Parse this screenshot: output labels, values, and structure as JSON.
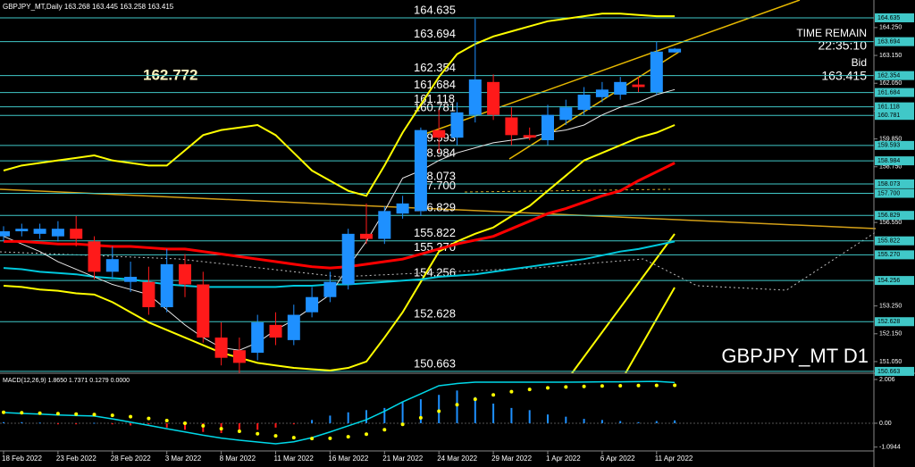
{
  "chart_data": [
    {
      "type": "candlestick",
      "title": "GBPJPY_MT,Daily  163.268 163.445 163.258 163.415",
      "annotations": {
        "high_label": "162.772",
        "time_remain": "TIME REMAIN",
        "timer": "22:35:10",
        "bid_label": "Bid",
        "bid": "163.415",
        "symbol": "GBPJPY_MT D1"
      },
      "up_color": "#1e90ff",
      "down_color": "#ff1a1a",
      "level_color": "#40c8c8",
      "categories": [
        "18 Feb 2022",
        null,
        null,
        "23 Feb 2022",
        null,
        null,
        "28 Feb 2022",
        null,
        null,
        "3 Mar 2022",
        null,
        null,
        "8 Mar 2022",
        null,
        null,
        "11 Mar 2022",
        null,
        null,
        "16 Mar 2022",
        null,
        null,
        "21 Mar 2022",
        null,
        null,
        "24 Mar 2022",
        null,
        null,
        "29 Mar 2022",
        null,
        null,
        "1 Apr 2022",
        null,
        null,
        "6 Apr 2022",
        null,
        null,
        "11 Apr 2022",
        null
      ],
      "open": [
        156.0,
        156.2,
        156.1,
        156.0,
        156.3,
        155.8,
        154.6,
        154.2,
        154.2,
        153.2,
        154.9,
        154.1,
        152.0,
        151.5,
        151.4,
        152.5,
        151.9,
        153.0,
        153.6,
        154.1,
        156.1,
        155.9,
        156.9,
        157.0,
        160.2,
        159.9,
        160.8,
        162.1,
        160.7,
        160.0,
        159.8,
        160.6,
        161.0,
        161.5,
        161.6,
        162.0,
        161.7,
        163.268
      ],
      "high": [
        156.4,
        156.5,
        156.5,
        156.6,
        156.8,
        156.0,
        155.6,
        155.0,
        154.8,
        155.5,
        155.3,
        154.6,
        152.6,
        152.0,
        152.9,
        153.0,
        153.3,
        154.0,
        154.6,
        156.3,
        157.3,
        157.2,
        157.6,
        160.3,
        161.0,
        161.3,
        164.6,
        162.4,
        161.1,
        160.3,
        161.2,
        161.4,
        161.9,
        162.1,
        162.3,
        162.3,
        163.7,
        163.445
      ],
      "low": [
        155.8,
        156.0,
        155.9,
        155.8,
        155.6,
        154.3,
        154.3,
        153.8,
        152.9,
        153.0,
        153.6,
        151.8,
        150.9,
        150.6,
        151.1,
        151.7,
        151.7,
        152.8,
        153.4,
        153.9,
        155.7,
        155.7,
        156.7,
        156.8,
        159.3,
        159.6,
        160.5,
        160.6,
        159.6,
        159.8,
        159.6,
        160.4,
        160.8,
        161.3,
        161.4,
        161.7,
        161.6,
        163.258
      ],
      "close": [
        156.2,
        156.3,
        156.3,
        156.3,
        155.9,
        154.6,
        155.1,
        154.4,
        153.2,
        154.9,
        154.1,
        152.0,
        151.2,
        151.0,
        152.6,
        152.0,
        152.9,
        153.6,
        154.2,
        156.1,
        155.9,
        157.0,
        157.3,
        160.2,
        159.9,
        160.9,
        162.2,
        160.8,
        160.0,
        159.9,
        160.8,
        161.1,
        161.6,
        161.8,
        162.1,
        161.9,
        163.3,
        163.415
      ],
      "lines": [
        {
          "color": "#ffff00",
          "values": [
            158.6,
            158.8,
            158.9,
            159.0,
            159.1,
            159.2,
            159.0,
            158.9,
            158.8,
            158.8,
            159.4,
            160.0,
            160.2,
            160.3,
            160.4,
            160.0,
            159.3,
            158.6,
            158.2,
            157.8,
            157.6,
            158.8,
            160.1,
            161.2,
            162.3,
            163.2,
            163.6,
            163.9,
            164.1,
            164.3,
            164.5,
            164.6,
            164.7,
            164.8,
            164.8,
            164.75,
            164.7,
            164.7
          ]
        },
        {
          "color": "#ffff00",
          "values": [
            154.05,
            154.0,
            153.9,
            153.85,
            153.75,
            153.7,
            153.4,
            153.0,
            152.6,
            152.3,
            152.0,
            151.7,
            151.4,
            151.2,
            151.0,
            150.9,
            150.8,
            150.75,
            150.7,
            150.8,
            151.05,
            152.0,
            153.0,
            154.2,
            155.4,
            155.8,
            156.1,
            156.35,
            156.8,
            157.2,
            157.8,
            158.4,
            159.0,
            159.3,
            159.6,
            159.9,
            160.1,
            160.4
          ]
        },
        {
          "color": "#00c8dc",
          "values": [
            154.75,
            154.7,
            154.6,
            154.55,
            154.5,
            154.4,
            154.35,
            154.3,
            154.2,
            154.1,
            154.05,
            154.0,
            154.0,
            154.0,
            154.0,
            154.0,
            154.05,
            154.05,
            154.1,
            154.1,
            154.15,
            154.2,
            154.25,
            154.3,
            154.4,
            154.45,
            154.5,
            154.6,
            154.7,
            154.8,
            154.9,
            155.0,
            155.1,
            155.25,
            155.4,
            155.5,
            155.65,
            155.8
          ]
        },
        {
          "color": "#e8e8e8",
          "values": [
            156.0,
            155.7,
            155.4,
            155.0,
            154.7,
            154.4,
            154.1,
            153.9,
            153.7,
            153.1,
            152.5,
            152.0,
            151.6,
            151.5,
            151.8,
            152.3,
            152.7,
            153.2,
            153.7,
            154.8,
            155.8,
            157.0,
            158.3,
            158.6,
            159.0,
            159.3,
            159.5,
            159.7,
            159.8,
            159.9,
            160.1,
            160.2,
            160.4,
            160.8,
            161.1,
            161.3,
            161.6,
            161.8
          ]
        },
        {
          "color": "#ff0000",
          "values": [
            155.8,
            155.8,
            155.75,
            155.7,
            155.7,
            155.65,
            155.6,
            155.6,
            155.55,
            155.5,
            155.5,
            155.4,
            155.3,
            155.2,
            155.1,
            155.0,
            154.9,
            154.8,
            154.75,
            154.8,
            154.9,
            155.0,
            155.1,
            155.3,
            155.5,
            155.7,
            155.85,
            156.0,
            156.3,
            156.6,
            156.9,
            157.1,
            157.35,
            157.6,
            157.8,
            158.2,
            158.55,
            158.9
          ]
        }
      ],
      "levels": [
        {
          "value": 164.635,
          "label": "164.635"
        },
        {
          "value": 163.694,
          "label": "163.694"
        },
        {
          "value": 162.354,
          "label": "162.354"
        },
        {
          "value": 161.684,
          "label": "161.684"
        },
        {
          "value": 161.118,
          "label": "161.118"
        },
        {
          "value": 160.781,
          "label": "160.781"
        },
        {
          "value": 159.593,
          "label": "159.593"
        },
        {
          "value": 158.984,
          "label": "158.984"
        },
        {
          "value": 158.073,
          "label": "158.073"
        },
        {
          "value": 157.7,
          "label": "157.700"
        },
        {
          "value": 156.829,
          "label": "156.829"
        },
        {
          "value": 155.822,
          "label": "155.822"
        },
        {
          "value": 155.27,
          "label": "155.270"
        },
        {
          "value": 154.256,
          "label": "154.256"
        },
        {
          "value": 152.628,
          "label": "152.628"
        },
        {
          "value": 150.663,
          "label": "150.663"
        }
      ],
      "ylim": [
        150.59,
        165.34
      ],
      "yticks": [
        {
          "value": 164.25,
          "label": "164.250"
        },
        {
          "value": 163.15,
          "label": "163.150"
        },
        {
          "value": 162.05,
          "label": "162.050"
        },
        {
          "value": 160.95,
          "label": "160.950"
        },
        {
          "value": 159.85,
          "label": "159.850"
        },
        {
          "value": 158.75,
          "label": "158.750"
        },
        {
          "value": 156.55,
          "label": "156.550"
        },
        {
          "value": 153.25,
          "label": "153.250"
        },
        {
          "value": 152.15,
          "label": "152.150"
        },
        {
          "value": 151.05,
          "label": "151.050"
        }
      ]
    },
    {
      "type": "macd",
      "title": "MACD(12,26,9) 1.8650 1.7371 0.1279 0.0000",
      "histogram": [
        0.05,
        0.05,
        0.03,
        -0.05,
        -0.05,
        0.02,
        -0.05,
        -0.1,
        -0.05,
        -0.2,
        -0.3,
        -0.4,
        -0.45,
        -0.4,
        -0.3,
        -0.2,
        -0.05,
        0.15,
        0.35,
        0.5,
        0.6,
        0.7,
        1.0,
        1.1,
        1.3,
        1.5,
        1.2,
        0.9,
        0.7,
        0.6,
        0.4,
        0.3,
        0.2,
        0.15,
        0.1,
        0.05,
        0.1,
        0.13
      ],
      "main": [
        0.49,
        0.45,
        0.42,
        0.38,
        0.35,
        0.33,
        0.2,
        0.05,
        -0.1,
        -0.25,
        -0.4,
        -0.55,
        -0.68,
        -0.78,
        -0.86,
        -0.94,
        -0.85,
        -0.66,
        -0.4,
        -0.12,
        0.16,
        0.55,
        0.98,
        1.35,
        1.72,
        1.82,
        1.88,
        1.88,
        1.88,
        1.88,
        1.88,
        1.88,
        1.89,
        1.9,
        1.9,
        1.91,
        1.92,
        1.865
      ],
      "signal": [
        0.5,
        0.48,
        0.46,
        0.44,
        0.42,
        0.4,
        0.36,
        0.3,
        0.22,
        0.12,
        0.0,
        -0.12,
        -0.25,
        -0.37,
        -0.48,
        -0.58,
        -0.66,
        -0.7,
        -0.69,
        -0.62,
        -0.5,
        -0.3,
        -0.05,
        0.25,
        0.55,
        0.85,
        1.1,
        1.3,
        1.45,
        1.55,
        1.62,
        1.66,
        1.69,
        1.71,
        1.72,
        1.73,
        1.735,
        1.7371
      ],
      "hist_up_color": "#1e90ff",
      "hist_down_color": "#ff1a1a",
      "main_color": "#00d8e8",
      "signal_color": "#ffff00",
      "ylim": [
        -1.27,
        2.21
      ],
      "yticks": [
        2.006,
        {
          "value": 0,
          "label": "0.00"
        },
        -1.0944
      ]
    }
  ]
}
